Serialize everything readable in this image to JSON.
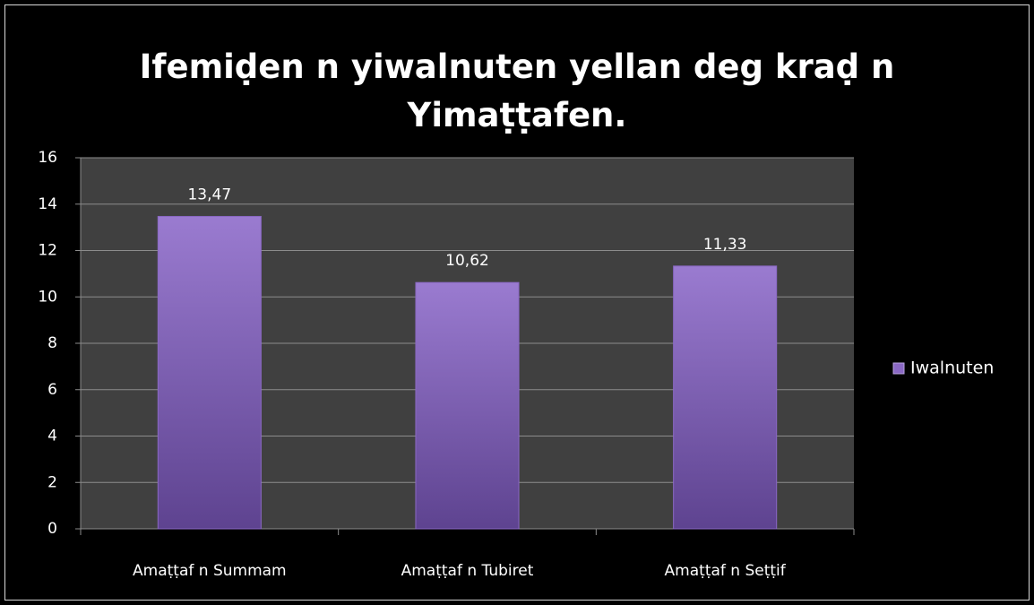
{
  "chart_data": {
    "type": "bar",
    "title": "Ifemiḍen n yiwalnuten yellan deg kraḍ n Yimaṭṭafen.",
    "categories": [
      "Amaṭṭaf n Summam",
      "Amaṭṭaf n Tubiret",
      "Amaṭṭaf n Seṭṭif"
    ],
    "series": [
      {
        "name": "Iwalnuten",
        "color": "#8a68c4",
        "values": [
          13.47,
          10.62,
          11.33
        ],
        "value_labels": [
          "13,47",
          "10,62",
          "11,33"
        ]
      }
    ],
    "ylim": [
      0,
      16
    ],
    "yticks": [
      0,
      2,
      4,
      6,
      8,
      10,
      12,
      14,
      16
    ],
    "grid": true,
    "legend": "right"
  }
}
